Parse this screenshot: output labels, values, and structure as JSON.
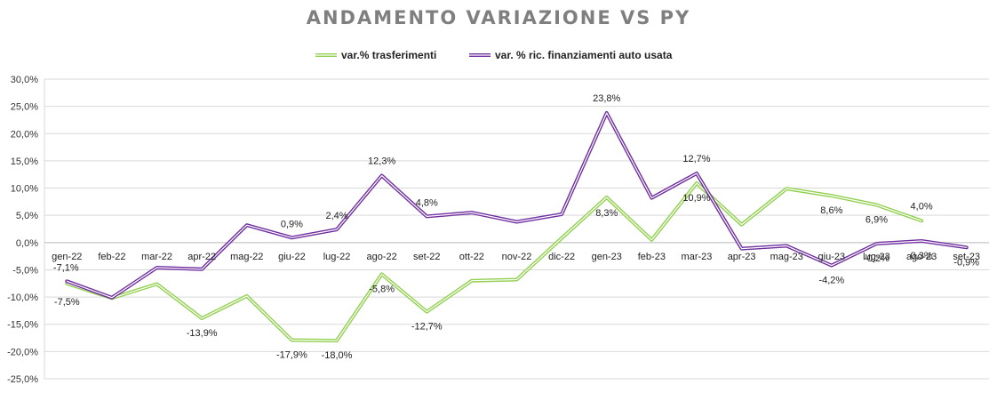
{
  "chart_data": {
    "type": "line",
    "title": "ANDAMENTO VARIAZIONE VS PY",
    "categories": [
      "gen-22",
      "feb-22",
      "mar-22",
      "apr-22",
      "mag-22",
      "giu-22",
      "lug-22",
      "ago-22",
      "set-22",
      "ott-22",
      "nov-22",
      "dic-22",
      "gen-23",
      "feb-23",
      "mar-23",
      "apr-23",
      "mag-23",
      "giu-23",
      "lug-23",
      "ago-23",
      "set-23"
    ],
    "ylim": [
      -25,
      30
    ],
    "yticks": [
      -25,
      -20,
      -15,
      -10,
      -5,
      0,
      5,
      10,
      15,
      20,
      25,
      30
    ],
    "ytick_labels": [
      "-25,0%",
      "-20,0%",
      "-15,0%",
      "-10,0%",
      "-5,0%",
      "0,0%",
      "5,0%",
      "10,0%",
      "15,0%",
      "20,0%",
      "25,0%",
      "30,0%"
    ],
    "grid": true,
    "legend_position": "top",
    "series": [
      {
        "name": "var.% trasferimenti",
        "color": "#92d050",
        "values": [
          -7.5,
          -10.2,
          -7.6,
          -13.9,
          -9.8,
          -17.9,
          -18.0,
          -5.8,
          -12.7,
          -7.0,
          -6.8,
          0.8,
          8.3,
          0.5,
          10.9,
          3.3,
          9.9,
          8.6,
          6.9,
          4.0,
          null
        ],
        "labels": {
          "0": "-7,5%",
          "3": "-13,9%",
          "5": "-17,9%",
          "6": "-18,0%",
          "7": "-5,8%",
          "8": "-12,7%",
          "12": "8,3%",
          "14": "10,9%",
          "17": "8,6%",
          "18": "6,9%",
          "19": "4,0%"
        }
      },
      {
        "name": "var. % ric. finanziamenti auto usata",
        "color": "#7030a0",
        "values": [
          -7.1,
          -10.1,
          -4.6,
          -4.9,
          3.2,
          0.9,
          2.4,
          12.3,
          4.8,
          5.5,
          3.8,
          5.2,
          23.8,
          8.2,
          12.7,
          -1.1,
          -0.6,
          -4.2,
          -0.2,
          0.3,
          -0.9
        ],
        "labels": {
          "0": "-7,1%",
          "5": "0,9%",
          "6": "2,4%",
          "7": "12,3%",
          "8": "4,8%",
          "12": "23,8%",
          "14": "12,7%",
          "17": "-4,2%",
          "18": "-0,2%",
          "19": "0,3%",
          "20": "-0,9%"
        }
      }
    ]
  }
}
